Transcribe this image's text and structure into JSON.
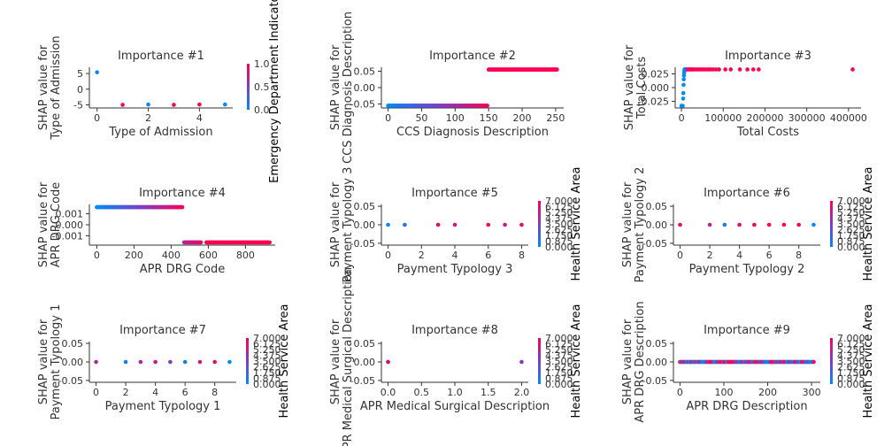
{
  "colors": {
    "low": "#008afb",
    "mid": "#7c3ec6",
    "high": "#ff0052",
    "axis": "#333333"
  },
  "chart_data": [
    {
      "type": "scatter",
      "title": "Importance #1",
      "xlabel": "Type of Admission",
      "ylabel_lines": [
        "SHAP value for",
        "Type of Admission"
      ],
      "xlim": [
        -0.3,
        5.3
      ],
      "ylim": [
        -6,
        7
      ],
      "xticks": [
        0,
        2,
        4
      ],
      "yticks": [
        -5,
        0,
        5
      ],
      "colorbar": {
        "label": "Emergency Department Indicator",
        "ticks": [
          "0.0",
          "0.5",
          "1.0"
        ]
      },
      "points": [
        {
          "x": 0,
          "y": 5.4,
          "c": 0
        },
        {
          "x": 1,
          "y": -5.0,
          "c": 1
        },
        {
          "x": 2,
          "y": -4.9,
          "c": 0
        },
        {
          "x": 3,
          "y": -5.0,
          "c": 1
        },
        {
          "x": 4,
          "y": -4.9,
          "c": 1
        },
        {
          "x": 5,
          "y": -4.9,
          "c": 0
        }
      ]
    },
    {
      "type": "scatter",
      "title": "Importance #2",
      "xlabel": "CCS Diagnosis Description",
      "ylabel_lines": [
        "SHAP value for",
        "CCS Diagnosis Description"
      ],
      "xlim": [
        -10,
        262
      ],
      "ylim": [
        -0.062,
        0.062
      ],
      "xticks": [
        0,
        50,
        100,
        150,
        200,
        250
      ],
      "yticks": [
        -0.05,
        0.0,
        0.05
      ],
      "tickDecimals": 2,
      "colorbar": null,
      "segments": [
        {
          "x0": 0,
          "x1": 148,
          "y": -0.055,
          "c0": 0,
          "c1": 0.95,
          "n": 148
        },
        {
          "x0": 150,
          "x1": 252,
          "y": 0.055,
          "c0": 1,
          "c1": 1,
          "n": 100
        }
      ]
    },
    {
      "type": "scatter",
      "title": "Importance #3",
      "xlabel": "Total Costs",
      "ylabel_lines": [
        "SHAP value for",
        "Total Costs"
      ],
      "xlim": [
        -15000,
        430000
      ],
      "ylim": [
        -0.037,
        0.037
      ],
      "xticks": [
        0,
        100000,
        200000,
        300000,
        400000
      ],
      "yticks": [
        -0.025,
        0.0,
        0.025
      ],
      "tickDecimals": 3,
      "colorbar": null,
      "points": [
        {
          "x": 0,
          "y": -0.033,
          "c": 0
        },
        {
          "x": 3000,
          "y": -0.033,
          "c": 0
        },
        {
          "x": 4000,
          "y": -0.02,
          "c": 0
        },
        {
          "x": 4500,
          "y": -0.01,
          "c": 0
        },
        {
          "x": 5000,
          "y": 0.005,
          "c": 0
        },
        {
          "x": 5500,
          "y": 0.015,
          "c": 0
        },
        {
          "x": 6000,
          "y": 0.022,
          "c": 0
        },
        {
          "x": 6500,
          "y": 0.027,
          "c": 0
        },
        {
          "x": 7000,
          "y": 0.031,
          "c": 0
        },
        {
          "x": 7500,
          "y": 0.033,
          "c": 0
        },
        {
          "x": 8000,
          "y": 0.033,
          "c": 0
        },
        {
          "x": 9000,
          "y": 0.033,
          "c": 0
        },
        {
          "x": 11000,
          "y": 0.033,
          "c": 0.3
        },
        {
          "x": 13000,
          "y": 0.033,
          "c": 0.5
        },
        {
          "x": 15000,
          "y": 0.033,
          "c": 0.7
        },
        {
          "x": 18000,
          "y": 0.033,
          "c": 0.9
        },
        {
          "x": 21000,
          "y": 0.033,
          "c": 1
        },
        {
          "x": 24000,
          "y": 0.033,
          "c": 1
        },
        {
          "x": 27000,
          "y": 0.033,
          "c": 1
        },
        {
          "x": 30000,
          "y": 0.033,
          "c": 1
        },
        {
          "x": 34000,
          "y": 0.033,
          "c": 1
        },
        {
          "x": 38000,
          "y": 0.033,
          "c": 1
        },
        {
          "x": 42000,
          "y": 0.033,
          "c": 1
        },
        {
          "x": 46000,
          "y": 0.033,
          "c": 1
        },
        {
          "x": 50000,
          "y": 0.033,
          "c": 1
        },
        {
          "x": 55000,
          "y": 0.033,
          "c": 1
        },
        {
          "x": 60000,
          "y": 0.033,
          "c": 1
        },
        {
          "x": 65000,
          "y": 0.033,
          "c": 1
        },
        {
          "x": 70000,
          "y": 0.033,
          "c": 1
        },
        {
          "x": 76000,
          "y": 0.033,
          "c": 1
        },
        {
          "x": 83000,
          "y": 0.033,
          "c": 1
        },
        {
          "x": 90000,
          "y": 0.033,
          "c": 1
        },
        {
          "x": 105000,
          "y": 0.033,
          "c": 1
        },
        {
          "x": 118000,
          "y": 0.033,
          "c": 1
        },
        {
          "x": 140000,
          "y": 0.033,
          "c": 1
        },
        {
          "x": 158000,
          "y": 0.033,
          "c": 1
        },
        {
          "x": 172000,
          "y": 0.033,
          "c": 1
        },
        {
          "x": 185000,
          "y": 0.033,
          "c": 1
        },
        {
          "x": 410000,
          "y": 0.033,
          "c": 1
        }
      ]
    },
    {
      "type": "scatter",
      "title": "Importance #4",
      "xlabel": "APR DRG Code",
      "ylabel_lines": [
        "SHAP value for",
        "APR DRG Code"
      ],
      "xlim": [
        -40,
        960
      ],
      "ylim": [
        -0.00185,
        0.00185
      ],
      "xticks": [
        0,
        200,
        400,
        600,
        800
      ],
      "yticks": [
        -0.001,
        0.0,
        0.001
      ],
      "tickDecimals": 3,
      "colorbar": null,
      "segments": [
        {
          "x0": 0,
          "x1": 460,
          "y": 0.0016,
          "c0": 0,
          "c1": 0.95,
          "n": 110
        },
        {
          "x0": 470,
          "x1": 560,
          "y": -0.0016,
          "c0": 0.7,
          "c1": 0.9,
          "n": 22
        },
        {
          "x0": 590,
          "x1": 930,
          "y": -0.0016,
          "c0": 1,
          "c1": 1,
          "n": 70
        }
      ]
    },
    {
      "type": "scatter",
      "title": "Importance #5",
      "xlabel": "Payment Typology 3",
      "ylabel_lines": [
        "SHAP value for",
        "Payment Typology 3"
      ],
      "xlim": [
        -0.4,
        8.4
      ],
      "ylim": [
        -0.055,
        0.055
      ],
      "xticks": [
        0,
        2,
        4,
        6,
        8
      ],
      "yticks": [
        -0.05,
        0.0,
        0.05
      ],
      "tickDecimals": 2,
      "colorbar": {
        "label": "Health Service Area",
        "ticks": [
          "0.000",
          "0.875",
          "1.750",
          "2.625",
          "3.500",
          "4.375",
          "5.250",
          "6.125",
          "7.000"
        ]
      },
      "points": [
        {
          "x": 0,
          "y": 0,
          "c": 0
        },
        {
          "x": 1,
          "y": 0,
          "c": 0.15
        },
        {
          "x": 3,
          "y": 0,
          "c": 0.9
        },
        {
          "x": 4,
          "y": 0,
          "c": 0.85
        },
        {
          "x": 6,
          "y": 0,
          "c": 0.95
        },
        {
          "x": 7,
          "y": 0,
          "c": 0.8
        },
        {
          "x": 8,
          "y": 0,
          "c": 0.9
        }
      ]
    },
    {
      "type": "scatter",
      "title": "Importance #6",
      "xlabel": "Payment Typology 2",
      "ylabel_lines": [
        "SHAP value for",
        "Payment Typology 2"
      ],
      "xlim": [
        -0.45,
        9.45
      ],
      "ylim": [
        -0.055,
        0.055
      ],
      "xticks": [
        0,
        2,
        4,
        6,
        8
      ],
      "yticks": [
        -0.05,
        0.0,
        0.05
      ],
      "tickDecimals": 2,
      "colorbar": {
        "label": "Health Service Area",
        "ticks": [
          "0.000",
          "0.875",
          "1.750",
          "2.625",
          "3.500",
          "4.375",
          "5.250",
          "6.125",
          "7.000"
        ]
      },
      "points": [
        {
          "x": 0,
          "y": 0,
          "c": 0.9
        },
        {
          "x": 2,
          "y": 0,
          "c": 0.7
        },
        {
          "x": 3,
          "y": 0,
          "c": 0.1
        },
        {
          "x": 4,
          "y": 0,
          "c": 0.9
        },
        {
          "x": 5,
          "y": 0,
          "c": 0.95
        },
        {
          "x": 6,
          "y": 0,
          "c": 1
        },
        {
          "x": 7,
          "y": 0,
          "c": 1
        },
        {
          "x": 8,
          "y": 0,
          "c": 0.95
        },
        {
          "x": 9,
          "y": 0,
          "c": 0
        }
      ]
    },
    {
      "type": "scatter",
      "title": "Importance #7",
      "xlabel": "Payment Typology 1",
      "ylabel_lines": [
        "SHAP value for",
        "Payment Typology 1"
      ],
      "xlim": [
        -0.45,
        9.45
      ],
      "ylim": [
        -0.055,
        0.055
      ],
      "xticks": [
        0,
        2,
        4,
        6,
        8
      ],
      "yticks": [
        -0.05,
        0.0,
        0.05
      ],
      "tickDecimals": 2,
      "colorbar": {
        "label": "Health Service Area",
        "ticks": [
          "0.000",
          "0.875",
          "1.750",
          "2.625",
          "3.500",
          "4.375",
          "5.250",
          "6.125",
          "7.000"
        ]
      },
      "points": [
        {
          "x": 0,
          "y": 0,
          "c": 0.7
        },
        {
          "x": 2,
          "y": 0,
          "c": 0.1
        },
        {
          "x": 3,
          "y": 0,
          "c": 0.7
        },
        {
          "x": 4,
          "y": 0,
          "c": 0.8
        },
        {
          "x": 5,
          "y": 0,
          "c": 0.5
        },
        {
          "x": 6,
          "y": 0,
          "c": 0.1
        },
        {
          "x": 7,
          "y": 0,
          "c": 0.8
        },
        {
          "x": 8,
          "y": 0,
          "c": 0.9
        },
        {
          "x": 9,
          "y": 0,
          "c": 0
        }
      ]
    },
    {
      "type": "scatter",
      "title": "Importance #8",
      "xlabel": "APR Medical Surgical Description",
      "ylabel_lines": [
        "SHAP value for",
        "APR Medical Surgical Description"
      ],
      "xlim": [
        -0.1,
        2.1
      ],
      "ylim": [
        -0.055,
        0.055
      ],
      "xticks": [
        0.0,
        0.5,
        1.0,
        1.5,
        2.0
      ],
      "xtickDecimals": 1,
      "yticks": [
        -0.05,
        0.0,
        0.05
      ],
      "tickDecimals": 2,
      "colorbar": {
        "label": "Health Service Area",
        "ticks": [
          "0.000",
          "0.875",
          "1.750",
          "2.625",
          "3.500",
          "4.375",
          "5.250",
          "6.125",
          "7.000"
        ]
      },
      "points": [
        {
          "x": 0,
          "y": 0,
          "c": 0.1
        },
        {
          "x": 0,
          "y": 0,
          "c": 0.9
        },
        {
          "x": 2,
          "y": 0,
          "c": 0.6
        }
      ]
    },
    {
      "type": "scatter",
      "title": "Importance #9",
      "xlabel": "APR DRG Description",
      "ylabel_lines": [
        "SHAP value for",
        "APR DRG Description"
      ],
      "xlim": [
        -15,
        320
      ],
      "ylim": [
        -0.055,
        0.055
      ],
      "xticks": [
        0,
        100,
        200,
        300
      ],
      "yticks": [
        -0.05,
        0.0,
        0.05
      ],
      "tickDecimals": 2,
      "colorbar": {
        "label": "Health Service Area",
        "ticks": [
          "0.000",
          "0.875",
          "1.750",
          "2.625",
          "3.500",
          "4.375",
          "5.250",
          "6.125",
          "7.000"
        ]
      },
      "segments": [
        {
          "x0": 0,
          "x1": 305,
          "y": 0,
          "c0": -1,
          "c1": -1,
          "n": 150
        }
      ]
    }
  ]
}
